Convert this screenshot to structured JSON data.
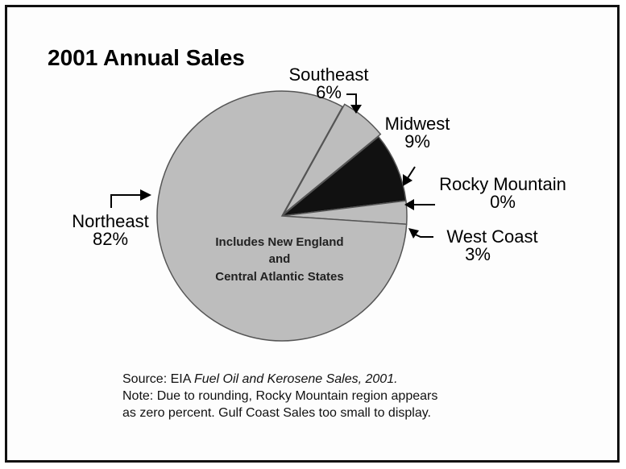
{
  "chart_data": {
    "type": "pie",
    "title": "2001 Annual Sales",
    "slices": [
      {
        "label": "Southeast",
        "value": 6,
        "value_label": "6%",
        "color": "#bdbdbd"
      },
      {
        "label": "Midwest",
        "value": 9,
        "value_label": "9%",
        "color": "#111111"
      },
      {
        "label": "Rocky Mountain",
        "value": 0,
        "value_label": "0%",
        "color": "#bdbdbd"
      },
      {
        "label": "West Coast",
        "value": 3,
        "value_label": "3%",
        "color": "#bdbdbd"
      },
      {
        "label": "Northeast",
        "value": 82,
        "value_label": "82%",
        "color": "#bdbdbd"
      }
    ],
    "annotation": [
      "Includes New England",
      "and",
      "Central Atlantic States"
    ]
  },
  "notes": {
    "source_prefix": "Source: EIA ",
    "source_title": "Fuel Oil and Kerosene Sales, 2001.",
    "note_line1": "Note: Due to rounding, Rocky Mountain region appears",
    "note_line2": "as zero percent. Gulf Coast Sales too small to display."
  }
}
